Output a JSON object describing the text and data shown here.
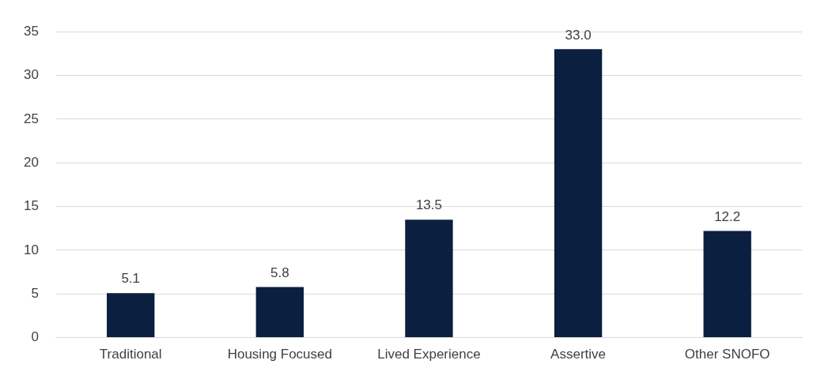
{
  "chart_data": {
    "type": "bar",
    "categories": [
      "Traditional",
      "Housing Focused",
      "Lived Experience",
      "Assertive",
      "Other SNOFO"
    ],
    "values": [
      5.1,
      5.8,
      13.5,
      33.0,
      12.2
    ],
    "color": "#0b1f40",
    "value_labels": [
      "5.1",
      "5.8",
      "13.5",
      "33.0",
      "12.2"
    ],
    "ylim": [
      0,
      35
    ],
    "yticks": [
      0,
      5,
      10,
      15,
      20,
      25,
      30,
      35
    ],
    "grid": "y",
    "legend": false
  }
}
